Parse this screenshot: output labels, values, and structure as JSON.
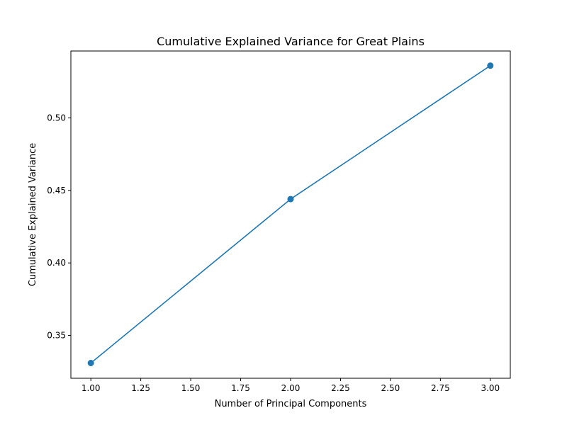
{
  "chart_data": {
    "type": "line",
    "title": "Cumulative Explained Variance for Great Plains",
    "xlabel": "Number of Principal Components",
    "ylabel": "Cumulative Explained Variance",
    "xlim": [
      0.9,
      3.1
    ],
    "ylim": [
      0.3205,
      0.5461
    ],
    "x_ticks": [
      1.0,
      1.25,
      1.5,
      1.75,
      2.0,
      2.25,
      2.5,
      2.75,
      3.0
    ],
    "x_tick_labels": [
      "1.00",
      "1.25",
      "1.50",
      "1.75",
      "2.00",
      "2.25",
      "2.50",
      "2.75",
      "3.00"
    ],
    "y_ticks": [
      0.35,
      0.4,
      0.45,
      0.5
    ],
    "y_tick_labels": [
      "0.35",
      "0.40",
      "0.45",
      "0.50"
    ],
    "grid": false,
    "marker": "circle",
    "series": [
      {
        "x": [
          1,
          2,
          3
        ],
        "values": [
          0.331,
          0.444,
          0.536
        ],
        "color": "#1f77b4"
      }
    ]
  }
}
